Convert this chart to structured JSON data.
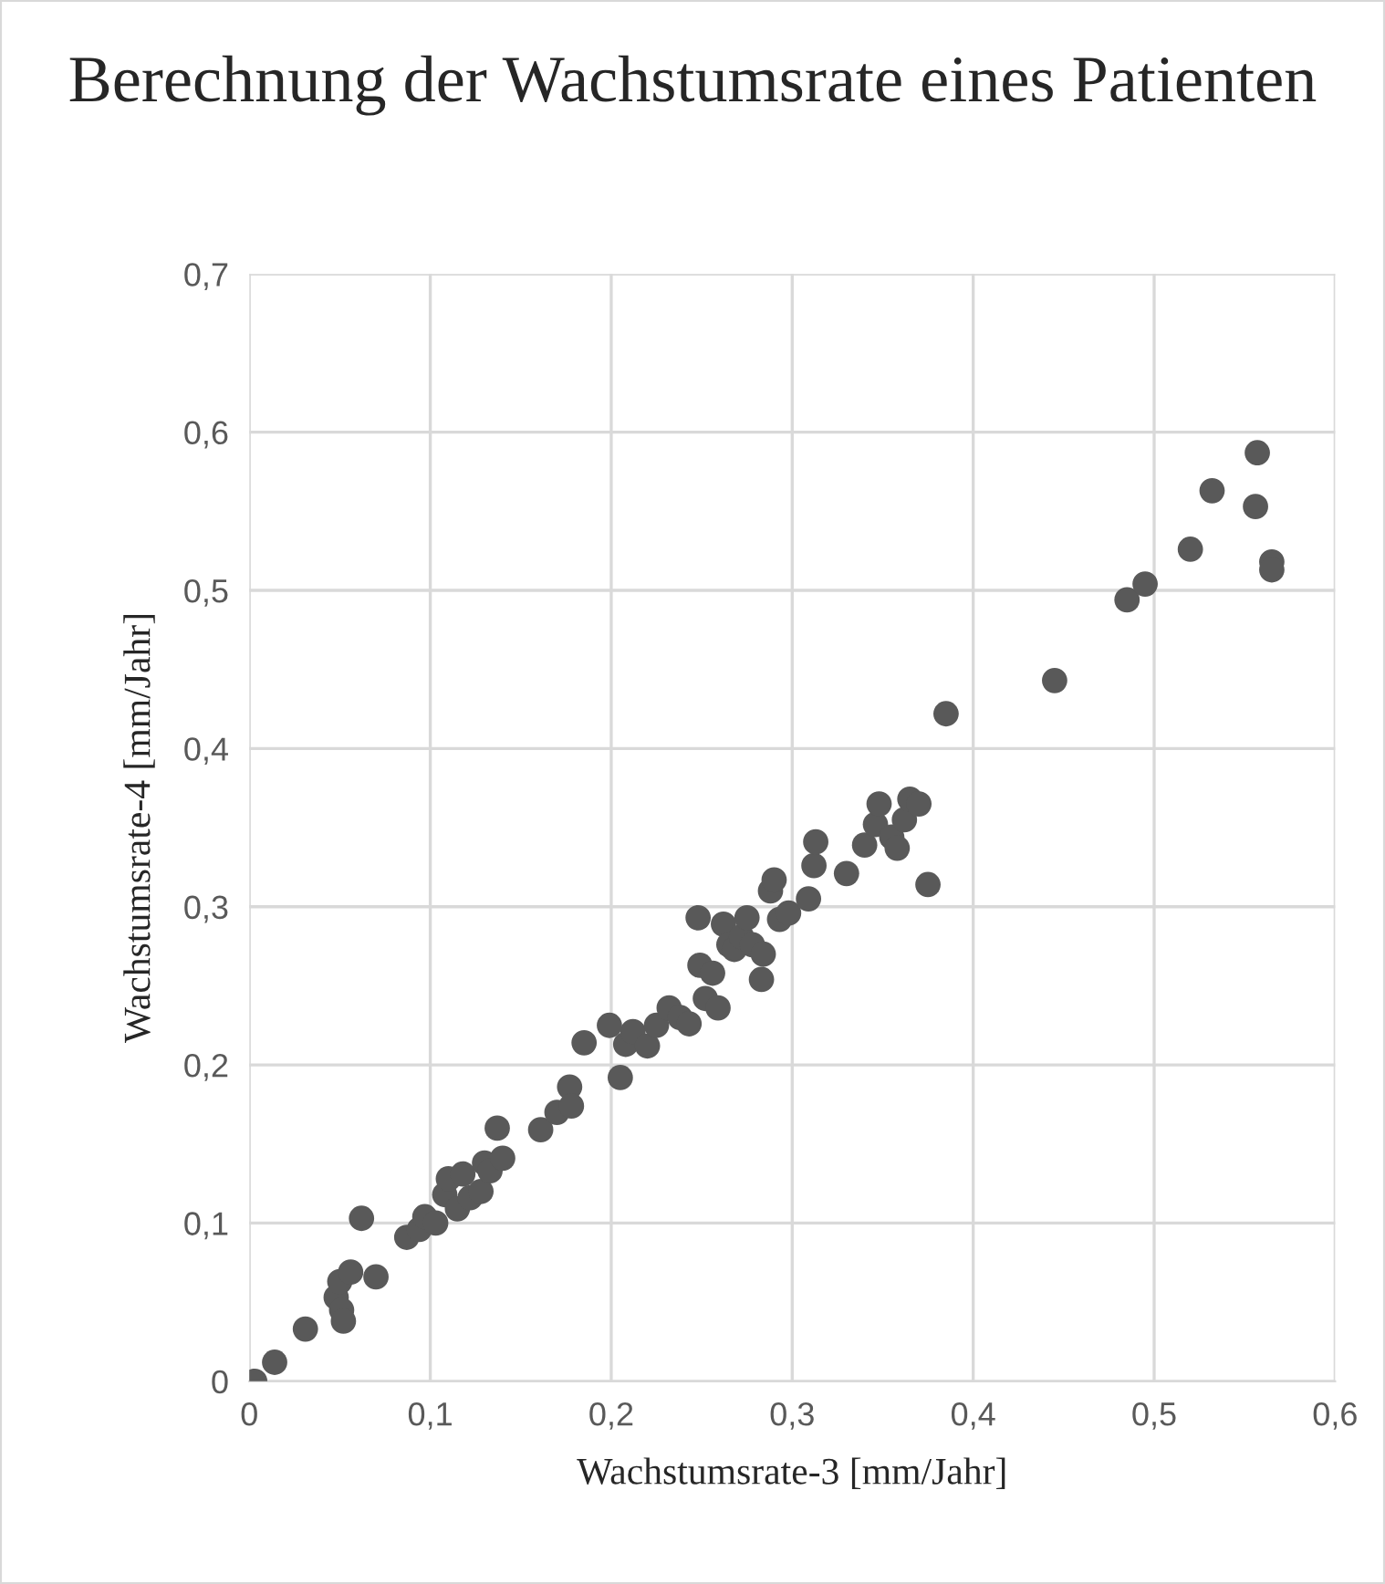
{
  "chart_data": {
    "type": "scatter",
    "title": "Berechnung der Wachstumsrate eines Patienten",
    "xlabel": "Wachstumsrate-3 [mm/Jahr]",
    "ylabel": "Wachstumsrate-4 [mm/Jahr]",
    "xlim": [
      0,
      0.6
    ],
    "ylim": [
      0,
      0.7
    ],
    "xticks": [
      {
        "value": 0,
        "label": "0"
      },
      {
        "value": 0.1,
        "label": "0,1"
      },
      {
        "value": 0.2,
        "label": "0,2"
      },
      {
        "value": 0.3,
        "label": "0,3"
      },
      {
        "value": 0.4,
        "label": "0,4"
      },
      {
        "value": 0.5,
        "label": "0,5"
      },
      {
        "value": 0.6,
        "label": "0,6"
      }
    ],
    "yticks": [
      {
        "value": 0,
        "label": "0"
      },
      {
        "value": 0.1,
        "label": "0,1"
      },
      {
        "value": 0.2,
        "label": "0,2"
      },
      {
        "value": 0.3,
        "label": "0,3"
      },
      {
        "value": 0.4,
        "label": "0,4"
      },
      {
        "value": 0.5,
        "label": "0,5"
      },
      {
        "value": 0.6,
        "label": "0,6"
      },
      {
        "value": 0.7,
        "label": "0,7"
      }
    ],
    "grid": true,
    "marker": "circle",
    "series": [
      {
        "color": "#595959",
        "x": [
          0.003,
          0.014,
          0.031,
          0.048,
          0.05,
          0.051,
          0.052,
          0.056,
          0.062,
          0.07,
          0.087,
          0.094,
          0.097,
          0.103,
          0.108,
          0.11,
          0.115,
          0.118,
          0.122,
          0.128,
          0.13,
          0.133,
          0.137,
          0.14,
          0.161,
          0.17,
          0.177,
          0.178,
          0.185,
          0.199,
          0.205,
          0.208,
          0.212,
          0.22,
          0.225,
          0.232,
          0.238,
          0.243,
          0.248,
          0.249,
          0.252,
          0.256,
          0.259,
          0.262,
          0.265,
          0.268,
          0.272,
          0.275,
          0.278,
          0.283,
          0.284,
          0.288,
          0.29,
          0.293,
          0.298,
          0.309,
          0.312,
          0.313,
          0.33,
          0.34,
          0.346,
          0.348,
          0.355,
          0.358,
          0.362,
          0.365,
          0.37,
          0.375,
          0.385,
          0.445,
          0.485,
          0.495,
          0.52,
          0.532,
          0.556,
          0.557,
          0.565,
          0.565
        ],
        "values": [
          0.0,
          0.012,
          0.033,
          0.053,
          0.063,
          0.045,
          0.038,
          0.069,
          0.103,
          0.066,
          0.091,
          0.096,
          0.104,
          0.1,
          0.118,
          0.128,
          0.109,
          0.131,
          0.116,
          0.12,
          0.138,
          0.133,
          0.16,
          0.141,
          0.159,
          0.17,
          0.186,
          0.174,
          0.214,
          0.225,
          0.192,
          0.213,
          0.221,
          0.212,
          0.225,
          0.236,
          0.23,
          0.226,
          0.293,
          0.263,
          0.242,
          0.258,
          0.236,
          0.289,
          0.276,
          0.273,
          0.281,
          0.293,
          0.276,
          0.254,
          0.27,
          0.31,
          0.317,
          0.292,
          0.296,
          0.305,
          0.326,
          0.341,
          0.321,
          0.339,
          0.352,
          0.365,
          0.344,
          0.337,
          0.355,
          0.368,
          0.365,
          0.314,
          0.422,
          0.443,
          0.494,
          0.504,
          0.526,
          0.563,
          0.553,
          0.587,
          0.518,
          0.513
        ]
      }
    ]
  }
}
